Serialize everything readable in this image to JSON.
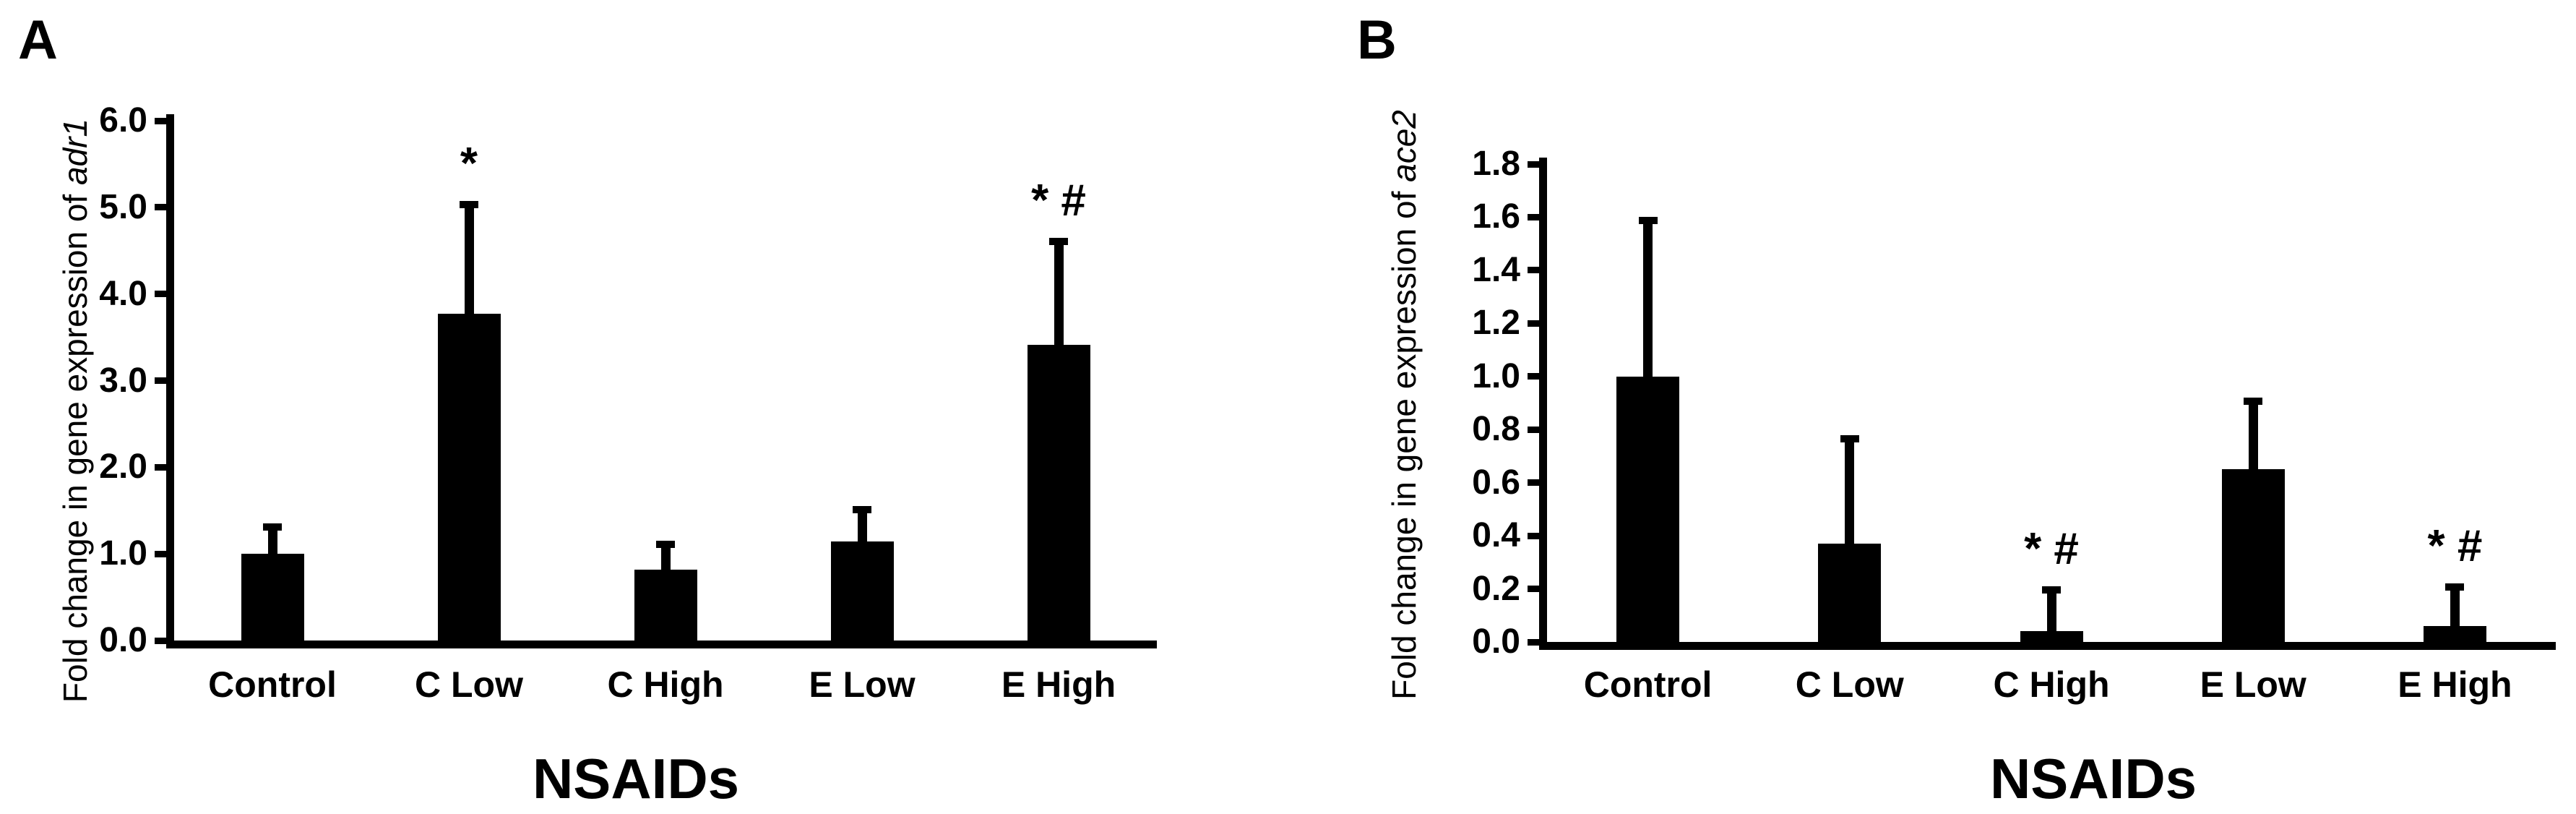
{
  "figure": {
    "background": "#ffffff",
    "ink_color": "#000000",
    "description": "Two-panel black-and-white bar chart with error bars"
  },
  "chart_data": [
    {
      "type": "bar",
      "panel": "A",
      "ylabel_prefix": "Fold change in gene expression of ",
      "ylabel_gene": "adr1",
      "xlabel": "NSAIDs",
      "categories": [
        "Control",
        "C Low",
        "C High",
        "E Low",
        "E High"
      ],
      "values": [
        1.0,
        3.77,
        0.82,
        1.14,
        3.41
      ],
      "error_plus": [
        0.35,
        1.3,
        0.33,
        0.41,
        1.24
      ],
      "annotations": [
        "",
        "*",
        "",
        "",
        "* #"
      ],
      "ytick_labels": [
        "6.0",
        "5.0",
        "4.0",
        "3.0",
        "2.0",
        "1.0",
        "0.0"
      ],
      "ylim": [
        0,
        6.0
      ],
      "bar_color": "#000000",
      "grid": false,
      "legend": "none"
    },
    {
      "type": "bar",
      "panel": "B",
      "ylabel_prefix": "Fold change in gene expression of ",
      "ylabel_gene": "ace2",
      "xlabel": "NSAIDs",
      "categories": [
        "Control",
        "C Low",
        "C High",
        "E Low",
        "E High"
      ],
      "values": [
        1.0,
        0.37,
        0.04,
        0.65,
        0.06
      ],
      "error_plus": [
        0.6,
        0.41,
        0.17,
        0.27,
        0.16
      ],
      "annotations": [
        "",
        "",
        "* #",
        "",
        "* #"
      ],
      "ytick_labels": [
        "1.8",
        "1.6",
        "1.4",
        "1.2",
        "1.0",
        "0.8",
        "0.6",
        "0.4",
        "0.2",
        "0.0"
      ],
      "ylim": [
        0,
        1.8
      ],
      "bar_color": "#000000",
      "grid": false,
      "legend": "none"
    }
  ]
}
